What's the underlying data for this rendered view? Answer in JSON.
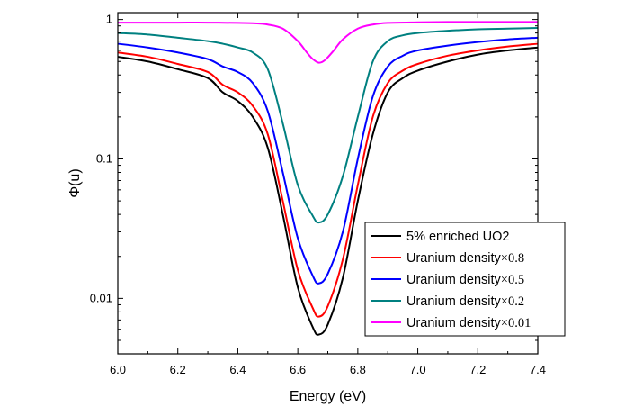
{
  "chart_data": {
    "type": "line",
    "title": "",
    "xlabel": "Energy (eV)",
    "ylabel": "Φ(u)",
    "xlim": [
      6.0,
      7.4
    ],
    "ylim": [
      0.004,
      1.12
    ],
    "yscale": "log",
    "grid": false,
    "legend_position": "bottom-right",
    "xticks": [
      6.0,
      6.2,
      6.4,
      6.6,
      6.8,
      7.0,
      7.2,
      7.4
    ],
    "xtick_labels": [
      "6.0",
      "6.2",
      "6.4",
      "6.6",
      "6.8",
      "7.0",
      "7.2",
      "7.4"
    ],
    "yticks": [
      1,
      0.1,
      0.01
    ],
    "ytick_labels": [
      "1",
      "0.1",
      "0.01"
    ],
    "series": [
      {
        "name": "5% enriched UO2",
        "legend_main": "5% enriched UO2",
        "legend_suffix": "",
        "color": "#000000",
        "x": [
          6.0,
          6.1,
          6.2,
          6.3,
          6.35,
          6.4,
          6.45,
          6.5,
          6.55,
          6.6,
          6.65,
          6.67,
          6.7,
          6.75,
          6.8,
          6.85,
          6.9,
          6.95,
          7.0,
          7.1,
          7.2,
          7.3,
          7.4
        ],
        "y": [
          0.54,
          0.5,
          0.44,
          0.38,
          0.3,
          0.26,
          0.2,
          0.12,
          0.04,
          0.012,
          0.0062,
          0.0055,
          0.0065,
          0.014,
          0.05,
          0.15,
          0.3,
          0.38,
          0.43,
          0.5,
          0.56,
          0.6,
          0.63
        ]
      },
      {
        "name": "Uranium density×0.8",
        "legend_main": "Uranium density",
        "legend_suffix": "×0.8",
        "color": "#ff0000",
        "x": [
          6.0,
          6.1,
          6.2,
          6.3,
          6.35,
          6.4,
          6.45,
          6.5,
          6.55,
          6.6,
          6.65,
          6.67,
          6.7,
          6.75,
          6.8,
          6.85,
          6.9,
          6.95,
          7.0,
          7.1,
          7.2,
          7.3,
          7.4
        ],
        "y": [
          0.58,
          0.54,
          0.48,
          0.42,
          0.34,
          0.3,
          0.24,
          0.15,
          0.05,
          0.016,
          0.0085,
          0.0074,
          0.0088,
          0.019,
          0.065,
          0.2,
          0.35,
          0.43,
          0.48,
          0.55,
          0.6,
          0.64,
          0.67
        ]
      },
      {
        "name": "Uranium density×0.5",
        "legend_main": "Uranium density",
        "legend_suffix": "×0.5",
        "color": "#0000ff",
        "x": [
          6.0,
          6.1,
          6.2,
          6.3,
          6.35,
          6.4,
          6.45,
          6.5,
          6.55,
          6.6,
          6.65,
          6.67,
          6.7,
          6.75,
          6.8,
          6.85,
          6.9,
          6.95,
          7.0,
          7.1,
          7.2,
          7.3,
          7.4
        ],
        "y": [
          0.67,
          0.63,
          0.58,
          0.52,
          0.46,
          0.42,
          0.35,
          0.22,
          0.08,
          0.027,
          0.0145,
          0.0128,
          0.015,
          0.03,
          0.1,
          0.28,
          0.46,
          0.55,
          0.6,
          0.65,
          0.69,
          0.72,
          0.74
        ]
      },
      {
        "name": "Uranium density×0.2",
        "legend_main": "Uranium density",
        "legend_suffix": "×0.2",
        "color": "#008080",
        "x": [
          6.0,
          6.1,
          6.2,
          6.3,
          6.35,
          6.4,
          6.45,
          6.5,
          6.55,
          6.6,
          6.65,
          6.67,
          6.7,
          6.75,
          6.8,
          6.85,
          6.9,
          6.95,
          7.0,
          7.1,
          7.2,
          7.3,
          7.4
        ],
        "y": [
          0.8,
          0.78,
          0.74,
          0.7,
          0.67,
          0.63,
          0.58,
          0.44,
          0.18,
          0.065,
          0.039,
          0.035,
          0.04,
          0.075,
          0.2,
          0.5,
          0.7,
          0.77,
          0.8,
          0.83,
          0.85,
          0.86,
          0.87
        ]
      },
      {
        "name": "Uranium density×0.01",
        "legend_main": "Uranium density",
        "legend_suffix": "×0.01",
        "color": "#ff00ff",
        "x": [
          6.0,
          6.1,
          6.2,
          6.3,
          6.4,
          6.45,
          6.5,
          6.55,
          6.6,
          6.63,
          6.65,
          6.67,
          6.69,
          6.72,
          6.75,
          6.8,
          6.85,
          6.9,
          7.0,
          7.1,
          7.2,
          7.3,
          7.4
        ],
        "y": [
          0.95,
          0.95,
          0.95,
          0.95,
          0.945,
          0.94,
          0.92,
          0.86,
          0.7,
          0.58,
          0.52,
          0.49,
          0.51,
          0.6,
          0.72,
          0.86,
          0.92,
          0.945,
          0.955,
          0.96,
          0.96,
          0.96,
          0.96
        ]
      }
    ]
  }
}
